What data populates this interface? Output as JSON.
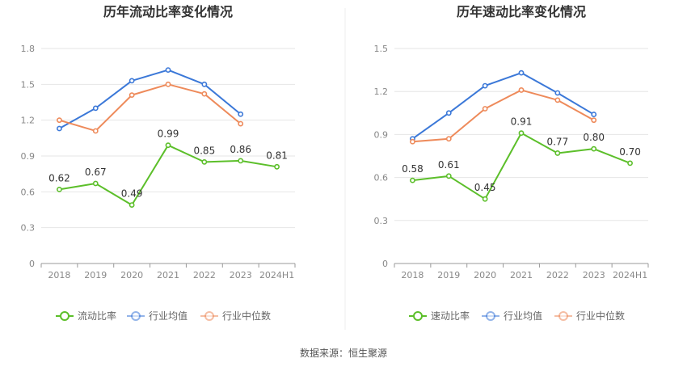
{
  "source_text": "数据来源：恒生聚源",
  "colors": {
    "green": "#5cbf2a",
    "blue": "#3b78d8",
    "orange": "#ee8a5a",
    "grid": "#e6e6e6",
    "axis": "#999999",
    "divider": "#eeeeee"
  },
  "chart_data": [
    {
      "type": "line",
      "title": "历年流动比率变化情况",
      "categories": [
        "2018",
        "2019",
        "2020",
        "2021",
        "2022",
        "2023",
        "2024H1"
      ],
      "ylim": [
        0,
        1.8
      ],
      "yticks": [
        0,
        0.3,
        0.6,
        0.9,
        1.2,
        1.5,
        1.8
      ],
      "ytick_labels": [
        "0",
        "0.3",
        "0.6",
        "0.9",
        "1.2",
        "1.5",
        "1.8"
      ],
      "grid": true,
      "legend_position": "bottom",
      "series": [
        {
          "name": "流动比率",
          "color": "#5cbf2a",
          "values": [
            0.62,
            0.67,
            0.49,
            0.99,
            0.85,
            0.86,
            0.81
          ],
          "labels": [
            "0.62",
            "0.67",
            "0.49",
            "0.99",
            "0.85",
            "0.86",
            "0.81"
          ]
        },
        {
          "name": "行业均值",
          "color": "#3b78d8",
          "values": [
            1.13,
            1.3,
            1.53,
            1.62,
            1.5,
            1.25,
            null
          ]
        },
        {
          "name": "行业中位数",
          "color": "#ee8a5a",
          "values": [
            1.2,
            1.11,
            1.41,
            1.5,
            1.42,
            1.17,
            null
          ]
        }
      ]
    },
    {
      "type": "line",
      "title": "历年速动比率变化情况",
      "categories": [
        "2018",
        "2019",
        "2020",
        "2021",
        "2022",
        "2023",
        "2024H1"
      ],
      "ylim": [
        0,
        1.5
      ],
      "yticks": [
        0,
        0.3,
        0.6,
        0.9,
        1.2,
        1.5
      ],
      "ytick_labels": [
        "0",
        "0.3",
        "0.6",
        "0.9",
        "1.2",
        "1.5"
      ],
      "grid": true,
      "legend_position": "bottom",
      "series": [
        {
          "name": "速动比率",
          "color": "#5cbf2a",
          "values": [
            0.58,
            0.61,
            0.45,
            0.91,
            0.77,
            0.8,
            0.7
          ],
          "labels": [
            "0.58",
            "0.61",
            "0.45",
            "0.91",
            "0.77",
            "0.80",
            "0.70"
          ]
        },
        {
          "name": "行业均值",
          "color": "#3b78d8",
          "values": [
            0.87,
            1.05,
            1.24,
            1.33,
            1.19,
            1.04,
            null
          ]
        },
        {
          "name": "行业中位数",
          "color": "#ee8a5a",
          "values": [
            0.85,
            0.87,
            1.08,
            1.21,
            1.14,
            1.0,
            null
          ]
        }
      ]
    }
  ]
}
